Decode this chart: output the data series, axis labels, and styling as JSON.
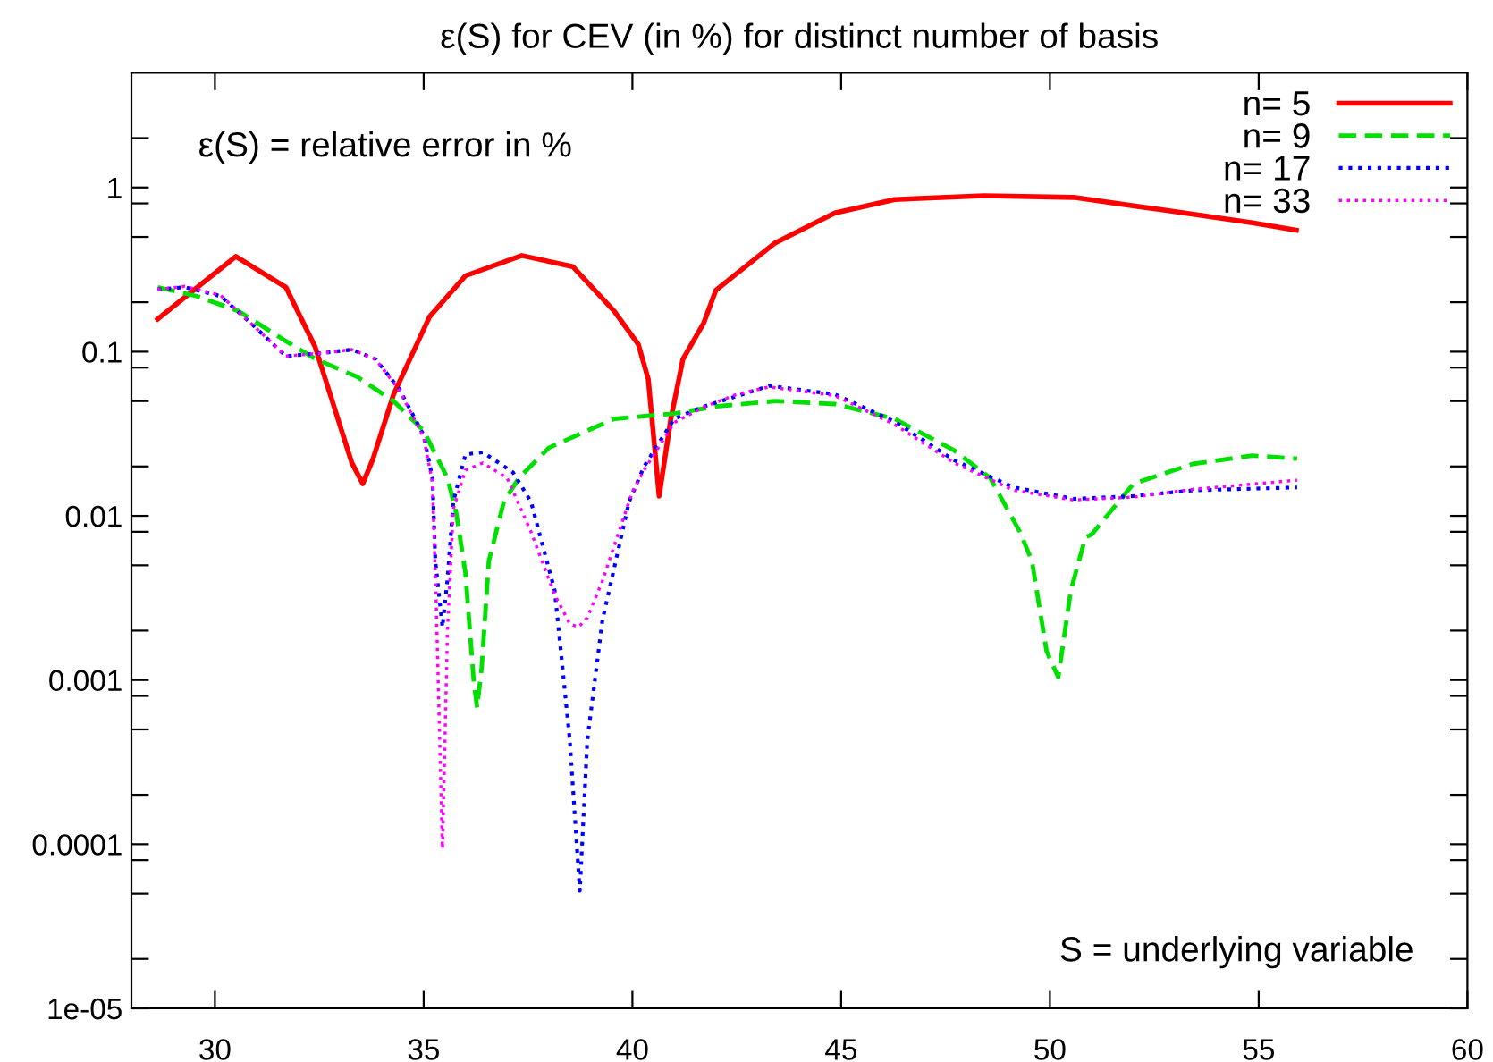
{
  "chart_data": {
    "type": "line",
    "title": "ε(S) for CEV (in %) for distinct number of basis",
    "annotations": [
      "ε(S) = relative error in %",
      "S = underlying variable"
    ],
    "log": "y",
    "grid": false,
    "legend": "top right",
    "xlim": [
      28,
      60
    ],
    "xticks": [
      30,
      35,
      40,
      45,
      50,
      55,
      60
    ],
    "ylim": [
      1e-05,
      5
    ],
    "yticks": [
      {
        "value": 1e-05,
        "label": "1e-05"
      },
      {
        "value": 2e-05,
        "label": null
      },
      {
        "value": 5e-05,
        "label": null
      },
      {
        "value": 8e-05,
        "label": null
      },
      {
        "value": 0.0001,
        "label": "0.0001"
      },
      {
        "value": 0.0002,
        "label": null
      },
      {
        "value": 0.0005,
        "label": null
      },
      {
        "value": 0.0008,
        "label": null
      },
      {
        "value": 0.001,
        "label": "0.001"
      },
      {
        "value": 0.002,
        "label": null
      },
      {
        "value": 0.005,
        "label": null
      },
      {
        "value": 0.008,
        "label": null
      },
      {
        "value": 0.01,
        "label": "0.01"
      },
      {
        "value": 0.02,
        "label": null
      },
      {
        "value": 0.05,
        "label": null
      },
      {
        "value": 0.08,
        "label": null
      },
      {
        "value": 0.1,
        "label": "0.1"
      },
      {
        "value": 0.2,
        "label": null
      },
      {
        "value": 0.5,
        "label": null
      },
      {
        "value": 0.8,
        "label": null
      },
      {
        "value": 1,
        "label": "1"
      },
      {
        "value": 2,
        "label": null
      }
    ],
    "series": [
      {
        "name": "n= 5",
        "color": "#ff0000",
        "line_style": "solid",
        "x": [
          28.63,
          30.5,
          31.7,
          32.4,
          33.28,
          33.54,
          33.78,
          34.28,
          35.14,
          36.0,
          37.35,
          38.57,
          39.56,
          40.14,
          40.38,
          40.64,
          40.92,
          41.21,
          41.71,
          42.0,
          43.42,
          44.85,
          46.28,
          48.42,
          50.57,
          52.7,
          54.85,
          55.9
        ],
        "values": [
          0.158,
          0.38,
          0.247,
          0.107,
          0.021,
          0.0157,
          0.022,
          0.055,
          0.163,
          0.29,
          0.385,
          0.33,
          0.177,
          0.111,
          0.068,
          0.0132,
          0.039,
          0.09,
          0.15,
          0.237,
          0.46,
          0.7,
          0.845,
          0.89,
          0.87,
          0.73,
          0.61,
          0.55
        ]
      },
      {
        "name": "n= 9",
        "color": "#00e000",
        "line_style": "dashed",
        "x": [
          28.63,
          29.56,
          30.56,
          31.7,
          32.42,
          33.42,
          34.28,
          35.0,
          35.57,
          35.78,
          36.0,
          36.2,
          36.28,
          36.39,
          36.56,
          36.92,
          37.28,
          38.0,
          39.56,
          41.0,
          42.0,
          43.42,
          44.85,
          46.28,
          47.71,
          48.57,
          49.28,
          49.57,
          49.92,
          50.2,
          50.5,
          50.85,
          51.0,
          52.0,
          53.42,
          54.85,
          55.92
        ],
        "values": [
          0.247,
          0.218,
          0.177,
          0.116,
          0.09,
          0.07,
          0.05,
          0.033,
          0.017,
          0.0104,
          0.0045,
          0.00098,
          0.00068,
          0.0012,
          0.0053,
          0.0122,
          0.017,
          0.026,
          0.039,
          0.042,
          0.0464,
          0.05,
          0.048,
          0.039,
          0.025,
          0.017,
          0.008,
          0.0053,
          0.0015,
          0.00104,
          0.0035,
          0.0074,
          0.0077,
          0.0157,
          0.0207,
          0.0233,
          0.0223
        ]
      },
      {
        "name": "n= 17",
        "color": "#0000ff",
        "line_style": "dotted",
        "x": [
          28.63,
          29.28,
          30.14,
          30.85,
          31.7,
          32.57,
          33.28,
          33.85,
          34.42,
          35.0,
          35.21,
          35.28,
          35.45,
          35.57,
          35.71,
          36.0,
          36.42,
          37.14,
          37.57,
          38.14,
          38.5,
          38.74,
          38.92,
          39.28,
          39.92,
          40.28,
          41.0,
          41.71,
          43.28,
          44.85,
          46.28,
          47.71,
          49.14,
          50.57,
          52.0,
          53.42,
          55.92
        ],
        "values": [
          0.24,
          0.247,
          0.218,
          0.15,
          0.094,
          0.098,
          0.103,
          0.09,
          0.059,
          0.031,
          0.017,
          0.0053,
          0.0021,
          0.0041,
          0.0122,
          0.0237,
          0.0244,
          0.0184,
          0.0122,
          0.0035,
          0.00043,
          5.2e-05,
          0.00043,
          0.0023,
          0.0122,
          0.02,
          0.039,
          0.0464,
          0.062,
          0.055,
          0.0375,
          0.0218,
          0.0149,
          0.0127,
          0.0132,
          0.0143,
          0.0149
        ]
      },
      {
        "name": "n= 33",
        "color": "#ff00ff",
        "line_style": "dotted",
        "x": [
          28.63,
          29.28,
          30.14,
          30.85,
          31.7,
          32.57,
          33.28,
          33.85,
          34.42,
          35.0,
          35.21,
          35.3,
          35.45,
          35.57,
          35.71,
          36.0,
          36.42,
          37.0,
          37.57,
          38.14,
          38.5,
          38.71,
          38.92,
          39.28,
          39.71,
          40.0,
          40.28,
          41.0,
          41.71,
          42.5,
          43.28,
          44.85,
          46.28,
          47.71,
          49.14,
          50.57,
          52.0,
          53.42,
          55.92
        ],
        "values": [
          0.24,
          0.25,
          0.22,
          0.15,
          0.094,
          0.098,
          0.103,
          0.09,
          0.058,
          0.03,
          0.016,
          0.003,
          9.4e-05,
          0.002,
          0.011,
          0.019,
          0.021,
          0.017,
          0.008,
          0.0033,
          0.0022,
          0.0021,
          0.0024,
          0.004,
          0.0085,
          0.014,
          0.019,
          0.037,
          0.046,
          0.055,
          0.061,
          0.054,
          0.036,
          0.021,
          0.0143,
          0.0125,
          0.013,
          0.0145,
          0.0165
        ]
      }
    ]
  }
}
